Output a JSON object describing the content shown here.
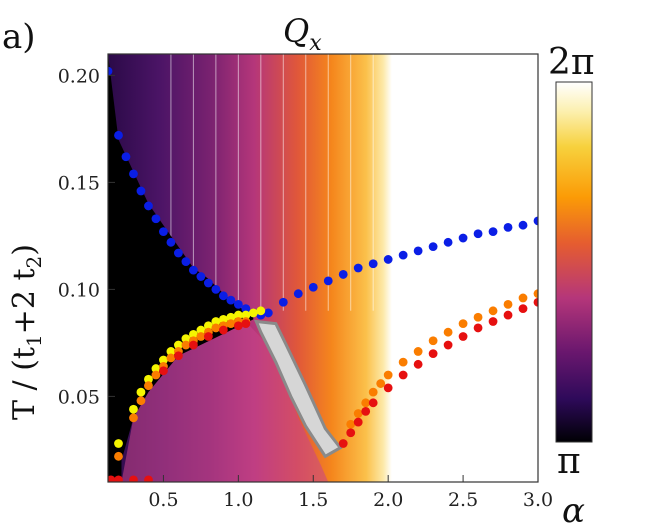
{
  "chart_data": {
    "type": "heatmap",
    "panel_label": "a)",
    "title": "Q",
    "title_subscript": "x",
    "ylabel": "T / (t",
    "ylabel_sub1": "1",
    "ylabel_mid": "+2 t",
    "ylabel_sub2": "2",
    "ylabel_end": ")",
    "xlabel": "α",
    "xlim": [
      0.13,
      3.0
    ],
    "ylim": [
      0.01,
      0.21
    ],
    "x_ticks": [
      {
        "value": 0.5,
        "label": "0.5"
      },
      {
        "value": 1.0,
        "label": "1.0"
      },
      {
        "value": 1.5,
        "label": "1.5"
      },
      {
        "value": 2.0,
        "label": "2.0"
      },
      {
        "value": 2.5,
        "label": "2.5"
      },
      {
        "value": 3.0,
        "label": "3.0"
      }
    ],
    "y_ticks": [
      {
        "value": 0.05,
        "label": "0.05"
      },
      {
        "value": 0.1,
        "label": "0.10"
      },
      {
        "value": 0.15,
        "label": "0.15"
      },
      {
        "value": 0.2,
        "label": "0.20"
      }
    ],
    "colorbar": {
      "min_label": "π",
      "max_label": "2π",
      "range": [
        3.1416,
        6.2832
      ],
      "colormap": [
        "#000004",
        "#2e0a5a",
        "#6a176e",
        "#b5367a",
        "#e55c30",
        "#fb9b06",
        "#f7d13d",
        "#fcffa4",
        "#ffffff"
      ]
    },
    "regions": {
      "black_region_boundary_alpha": [
        0.13,
        0.2,
        0.3,
        0.4,
        0.5,
        0.6,
        0.7,
        0.8,
        0.9,
        1.0,
        1.1
      ],
      "black_region_boundary_T": [
        0.21,
        0.17,
        0.155,
        0.14,
        0.13,
        0.12,
        0.11,
        0.105,
        0.098,
        0.092,
        0.088
      ],
      "gray_region_note": "shaded intermediate phase between alpha 1.1 and 1.75"
    },
    "series": [
      {
        "name": "blue",
        "color": "#0a1ee6",
        "x": [
          0.13,
          0.2,
          0.25,
          0.3,
          0.35,
          0.4,
          0.45,
          0.5,
          0.55,
          0.6,
          0.65,
          0.7,
          0.75,
          0.8,
          0.85,
          0.9,
          0.95,
          1.0,
          1.05,
          1.1,
          1.15,
          1.2,
          1.3,
          1.4,
          1.5,
          1.6,
          1.7,
          1.8,
          1.9,
          2.0,
          2.1,
          2.2,
          2.3,
          2.4,
          2.5,
          2.6,
          2.7,
          2.8,
          2.9,
          3.0
        ],
        "y": [
          0.202,
          0.172,
          0.162,
          0.154,
          0.146,
          0.139,
          0.133,
          0.127,
          0.122,
          0.117,
          0.113,
          0.109,
          0.106,
          0.103,
          0.1,
          0.097,
          0.095,
          0.093,
          0.091,
          0.089,
          0.088,
          0.089,
          0.094,
          0.098,
          0.101,
          0.104,
          0.107,
          0.11,
          0.112,
          0.114,
          0.116,
          0.118,
          0.12,
          0.122,
          0.124,
          0.126,
          0.127,
          0.129,
          0.13,
          0.132
        ]
      },
      {
        "name": "yellow",
        "color": "#f5f500",
        "x": [
          0.2,
          0.3,
          0.35,
          0.4,
          0.45,
          0.5,
          0.55,
          0.6,
          0.65,
          0.7,
          0.75,
          0.8,
          0.85,
          0.9,
          0.95,
          1.0,
          1.05,
          1.1,
          1.15
        ],
        "y": [
          0.028,
          0.044,
          0.052,
          0.058,
          0.063,
          0.067,
          0.071,
          0.074,
          0.077,
          0.079,
          0.081,
          0.083,
          0.085,
          0.086,
          0.087,
          0.088,
          0.088,
          0.089,
          0.09
        ]
      },
      {
        "name": "orange-left",
        "color": "#fa7d00",
        "x": [
          0.2,
          0.3,
          0.35,
          0.4,
          0.45,
          0.5,
          0.55,
          0.6,
          0.65,
          0.7,
          0.75,
          0.8,
          0.85,
          0.9,
          0.95,
          1.0,
          1.05
        ],
        "y": [
          0.022,
          0.04,
          0.048,
          0.055,
          0.06,
          0.064,
          0.068,
          0.071,
          0.074,
          0.076,
          0.078,
          0.08,
          0.082,
          0.083,
          0.084,
          0.085,
          0.085
        ]
      },
      {
        "name": "red-left",
        "color": "#e61010",
        "x": [
          0.15,
          0.2,
          0.3,
          0.4,
          0.5,
          0.6,
          0.7,
          0.8,
          0.9,
          1.0,
          1.05
        ],
        "y": [
          0.011,
          0.011,
          0.011,
          0.011,
          0.062,
          0.069,
          0.074,
          0.078,
          0.081,
          0.083,
          0.084
        ]
      },
      {
        "name": "orange-right",
        "color": "#fa7d00",
        "x": [
          1.75,
          1.8,
          1.85,
          1.9,
          1.95,
          2.0,
          2.1,
          2.2,
          2.3,
          2.4,
          2.5,
          2.6,
          2.7,
          2.8,
          2.9,
          3.0
        ],
        "y": [
          0.037,
          0.042,
          0.047,
          0.052,
          0.056,
          0.06,
          0.066,
          0.071,
          0.076,
          0.08,
          0.084,
          0.087,
          0.09,
          0.093,
          0.096,
          0.098
        ]
      },
      {
        "name": "red-right",
        "color": "#e61010",
        "x": [
          1.7,
          1.75,
          1.8,
          1.85,
          1.9,
          2.0,
          2.1,
          2.2,
          2.3,
          2.4,
          2.5,
          2.6,
          2.7,
          2.8,
          2.9,
          3.0
        ],
        "y": [
          0.028,
          0.033,
          0.038,
          0.043,
          0.047,
          0.054,
          0.06,
          0.065,
          0.07,
          0.074,
          0.078,
          0.082,
          0.085,
          0.088,
          0.091,
          0.094
        ]
      }
    ]
  }
}
